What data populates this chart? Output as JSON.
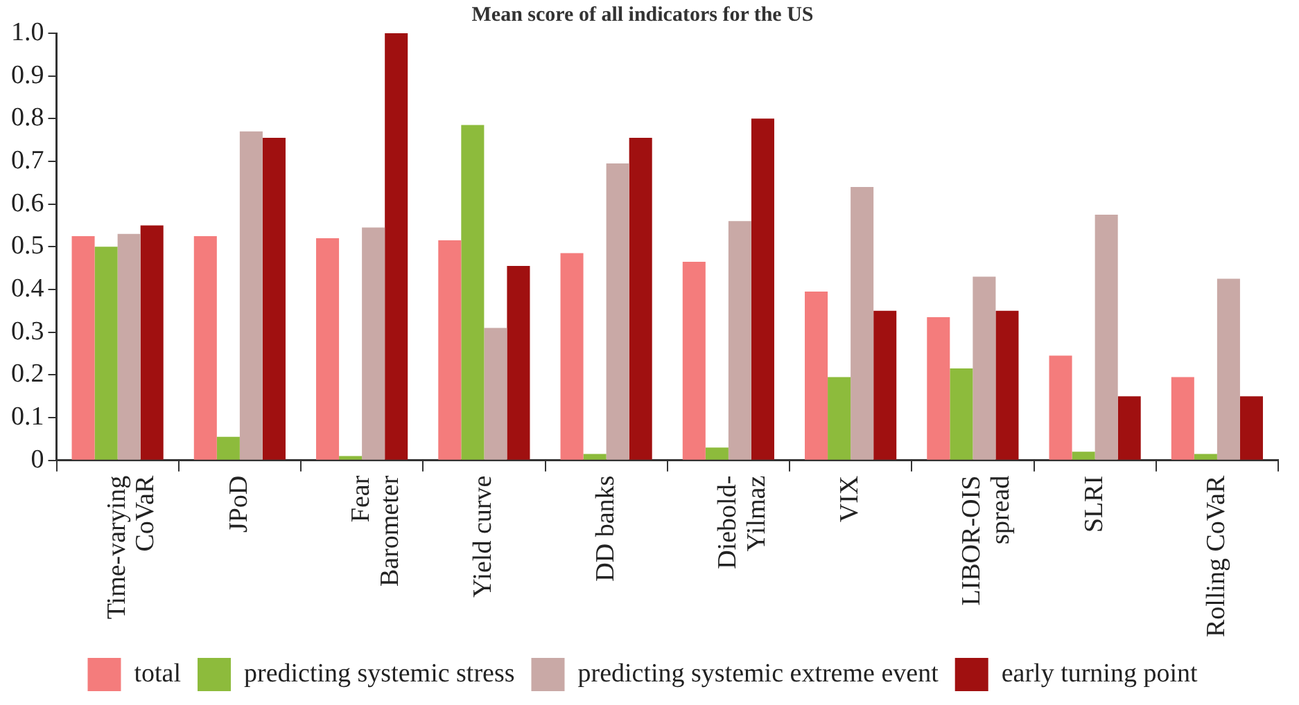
{
  "chart_data": {
    "type": "bar",
    "title": "Mean score of all indicators for the US",
    "categories": [
      "Time-varying CoVaR",
      "JPoD",
      "Fear Barometer",
      "Yield curve",
      "DD banks",
      "Diebold-Yilmaz",
      "VIX",
      "LIBOR-OIS spread",
      "SLRI",
      "Rolling CoVaR"
    ],
    "series": [
      {
        "name": "total",
        "color": "#f47c7c",
        "values": [
          0.525,
          0.525,
          0.52,
          0.515,
          0.485,
          0.465,
          0.395,
          0.335,
          0.245,
          0.195
        ]
      },
      {
        "name": "predicting systemic stress",
        "color": "#8dbb3c",
        "values": [
          0.5,
          0.055,
          0.01,
          0.785,
          0.015,
          0.03,
          0.195,
          0.215,
          0.02,
          0.015
        ]
      },
      {
        "name": "predicting systemic extreme event",
        "color": "#c9a9a6",
        "values": [
          0.53,
          0.77,
          0.545,
          0.31,
          0.695,
          0.56,
          0.64,
          0.43,
          0.575,
          0.425
        ]
      },
      {
        "name": "early turning point",
        "color": "#a01010",
        "values": [
          0.55,
          0.755,
          1.0,
          0.455,
          0.755,
          0.8,
          0.35,
          0.35,
          0.15,
          0.15
        ]
      }
    ],
    "ylim": [
      0,
      1.0
    ],
    "yticks": [
      0,
      {
        "value": 0.1,
        "label": "0.1"
      },
      {
        "value": 0.2,
        "label": "0.2"
      },
      {
        "value": 0.3,
        "label": "0.3"
      },
      {
        "value": 0.4,
        "label": "0.4"
      },
      {
        "value": 0.5,
        "label": "0.5"
      },
      {
        "value": 0.6,
        "label": "0.6"
      },
      {
        "value": 0.7,
        "label": "0.7"
      },
      {
        "value": 0.8,
        "label": "0.8"
      },
      {
        "value": 0.9,
        "label": "0.9"
      },
      {
        "value": 1.0,
        "label": "1.0"
      }
    ],
    "grid": false,
    "legend": "bottom"
  }
}
